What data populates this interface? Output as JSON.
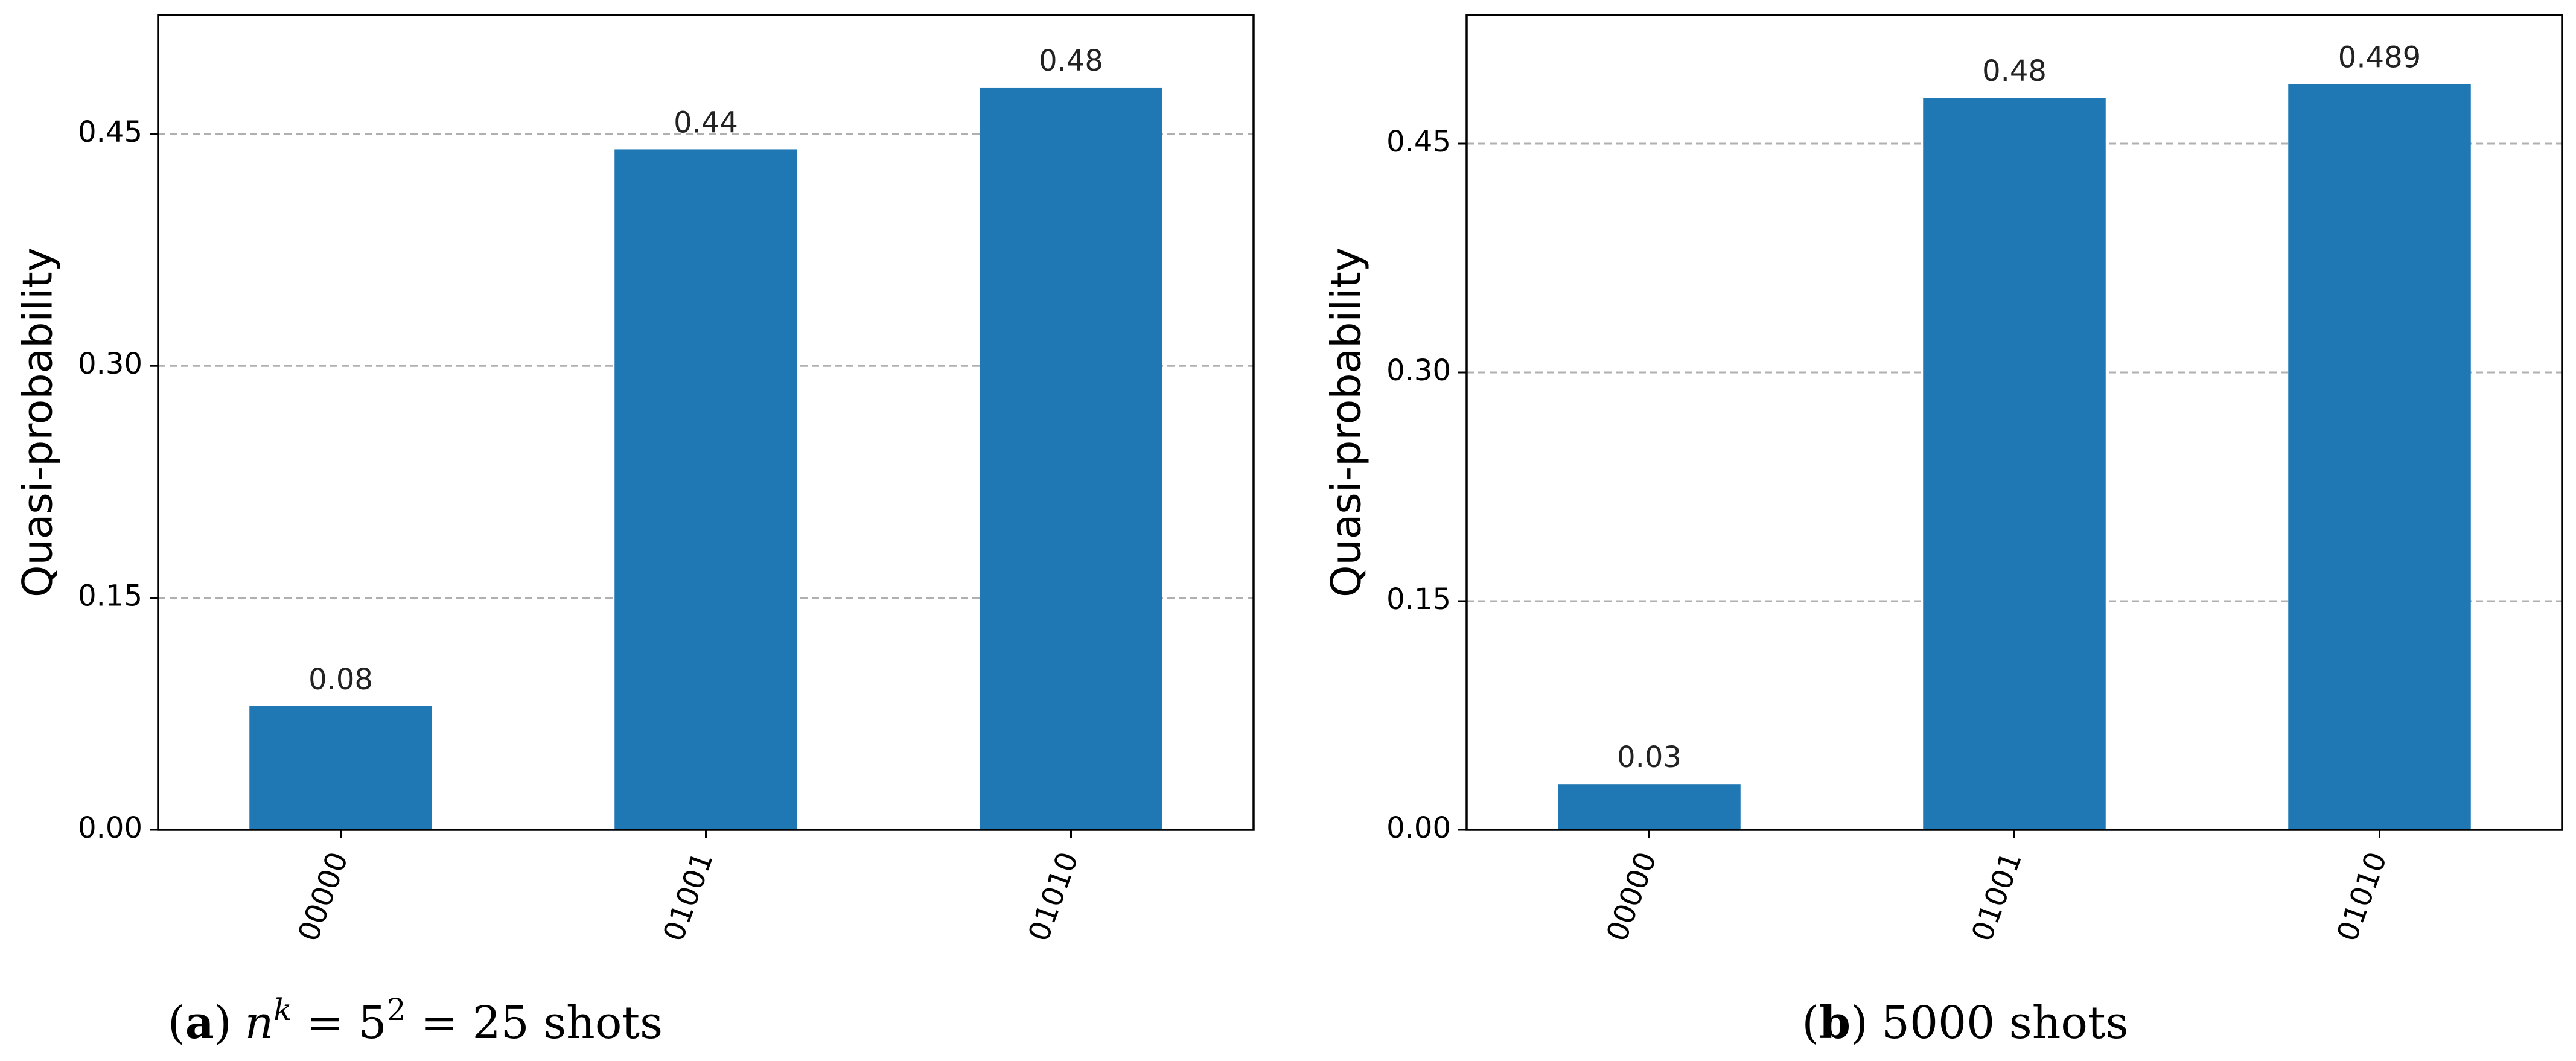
{
  "chart_data": [
    {
      "type": "bar",
      "caption": {
        "letter": "a",
        "left_paren": "(",
        "right_paren": ")",
        "n": "n",
        "k": "k",
        "eq1": "=",
        "base": "5",
        "exp": "2",
        "eq2": "=",
        "rest": "25 shots"
      },
      "ylabel": "Quasi-probability",
      "xlabel": "",
      "categories": [
        "00000",
        "01001",
        "01010"
      ],
      "values": [
        0.08,
        0.44,
        0.48
      ],
      "value_labels": [
        "0.08",
        "0.44",
        "0.48"
      ],
      "yticks": [
        "0.00",
        "0.15",
        "0.30",
        "0.45"
      ],
      "ylim": [
        0,
        0.5268
      ],
      "grid": "y dashed",
      "bar_color": "#1f77b4"
    },
    {
      "type": "bar",
      "caption": {
        "letter": "b",
        "left_paren": "(",
        "right_paren": ")",
        "rest": "5000 shots"
      },
      "ylabel": "Quasi-probability",
      "xlabel": "",
      "categories": [
        "00000",
        "01001",
        "01010"
      ],
      "values": [
        0.03,
        0.48,
        0.489
      ],
      "value_labels": [
        "0.03",
        "0.48",
        "0.489"
      ],
      "yticks": [
        "0.00",
        "0.15",
        "0.30",
        "0.45"
      ],
      "ylim": [
        0,
        0.5343
      ],
      "grid": "y dashed",
      "bar_color": "#1f77b4"
    }
  ]
}
